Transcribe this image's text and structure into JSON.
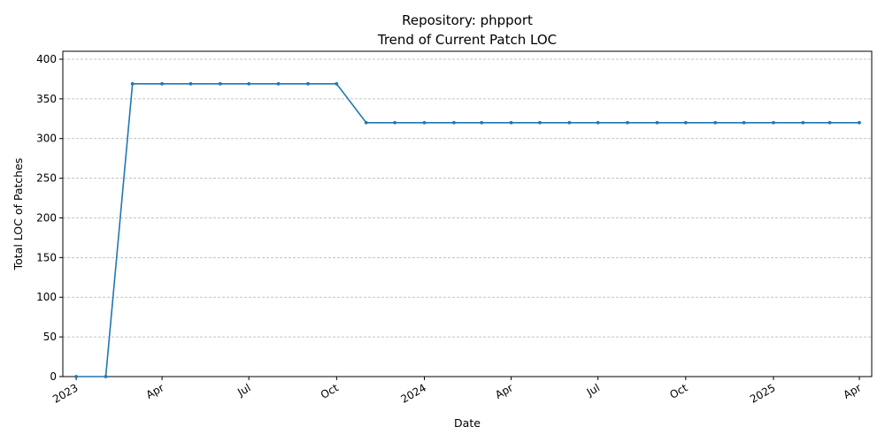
{
  "chart_data": {
    "type": "line",
    "title": "Repository: phpport",
    "subtitle": "Trend of Current Patch LOC",
    "xlabel": "Date",
    "ylabel": "Total LOC of Patches",
    "ylim": [
      0,
      410
    ],
    "yticks": [
      0,
      50,
      100,
      150,
      200,
      250,
      300,
      350,
      400
    ],
    "xlim": [
      "2022-12-18",
      "2025-04-14"
    ],
    "xticks": [
      {
        "date": "2023-01-01",
        "label": "2023"
      },
      {
        "date": "2023-04-01",
        "label": "Apr"
      },
      {
        "date": "2023-07-01",
        "label": "Jul"
      },
      {
        "date": "2023-10-01",
        "label": "Oct"
      },
      {
        "date": "2024-01-01",
        "label": "2024"
      },
      {
        "date": "2024-04-01",
        "label": "Apr"
      },
      {
        "date": "2024-07-01",
        "label": "Jul"
      },
      {
        "date": "2024-10-01",
        "label": "Oct"
      },
      {
        "date": "2025-01-01",
        "label": "2025"
      },
      {
        "date": "2025-04-01",
        "label": "Apr"
      }
    ],
    "grid": "horizontal-dashed",
    "series": [
      {
        "name": "Current Patch LOC",
        "color": "#1f77b4",
        "x": [
          "2023-01-01",
          "2023-02-01",
          "2023-03-01",
          "2023-04-01",
          "2023-05-01",
          "2023-06-01",
          "2023-07-01",
          "2023-08-01",
          "2023-09-01",
          "2023-10-01",
          "2023-11-01",
          "2023-12-01",
          "2024-01-01",
          "2024-02-01",
          "2024-03-01",
          "2024-04-01",
          "2024-05-01",
          "2024-06-01",
          "2024-07-01",
          "2024-08-01",
          "2024-09-01",
          "2024-10-01",
          "2024-11-01",
          "2024-12-01",
          "2025-01-01",
          "2025-02-01",
          "2025-03-01",
          "2025-04-01"
        ],
        "values": [
          0,
          0,
          369,
          369,
          369,
          369,
          369,
          369,
          369,
          369,
          320,
          320,
          320,
          320,
          320,
          320,
          320,
          320,
          320,
          320,
          320,
          320,
          320,
          320,
          320,
          320,
          320,
          320
        ]
      }
    ]
  }
}
